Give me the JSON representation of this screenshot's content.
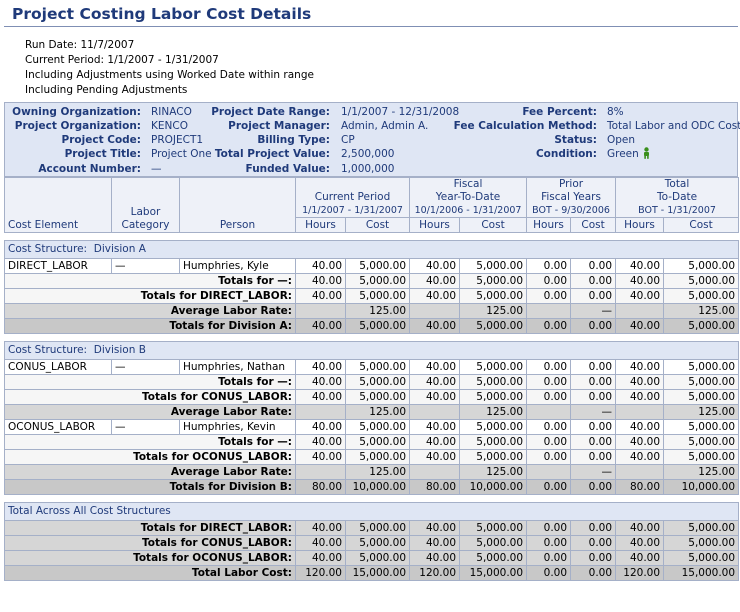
{
  "title": "Project Costing Labor Cost Details",
  "run_info": {
    "run_date": "Run Date: 11/7/2007",
    "current_period": "Current Period: 1/1/2007 - 1/31/2007",
    "note1": "Including Adjustments using Worked Date within range",
    "note2": "Including Pending Adjustments"
  },
  "project": {
    "owning_org_label": "Owning Organization:",
    "owning_org": "RINACO",
    "project_org_label": "Project Organization:",
    "project_org": "KENCO",
    "project_code_label": "Project Code:",
    "project_code": "PROJECT1",
    "project_title_label": "Project Title:",
    "project_title": "Project One",
    "account_number_label": "Account Number:",
    "account_number": "—",
    "date_range_label": "Project Date Range:",
    "date_range": "1/1/2007 - 12/31/2008",
    "manager_label": "Project Manager:",
    "manager": "Admin, Admin A.",
    "billing_type_label": "Billing Type:",
    "billing_type": "CP",
    "total_value_label": "Total Project Value:",
    "total_value": "2,500,000",
    "funded_value_label": "Funded Value:",
    "funded_value": "1,000,000",
    "fee_percent_label": "Fee Percent:",
    "fee_percent": "8%",
    "fee_method_label": "Fee Calculation Method:",
    "fee_method": "Total Labor and ODC Cost",
    "status_label": "Status:",
    "status": "Open",
    "condition_label": "Condition:",
    "condition": "Green",
    "condition_icon": "person-status-icon",
    "condition_color": "#3a8f1c"
  },
  "headers": {
    "cost_element": "Cost Element",
    "labor_category_1": "Labor",
    "labor_category_2": "Category",
    "person": "Person",
    "current_period": "Current Period",
    "current_period_range": "1/1/2007 - 1/31/2007",
    "fytd_1": "Fiscal",
    "fytd_2": "Year-To-Date",
    "fytd_range": "10/1/2006 - 1/31/2007",
    "prior_1": "Prior",
    "prior_2": "Fiscal Years",
    "prior_range": "BOT - 9/30/2006",
    "total_1": "Total",
    "total_2": "To-Date",
    "total_range": "BOT - 1/31/2007",
    "hours": "Hours",
    "cost": "Cost"
  },
  "structures": [
    {
      "label": "Cost Structure:",
      "name": "Division A",
      "elements": [
        {
          "element": "DIRECT_LABOR",
          "category": "—",
          "person": "Humphries, Kyle",
          "row": [
            "40.00",
            "5,000.00",
            "40.00",
            "5,000.00",
            "0.00",
            "0.00",
            "40.00",
            "5,000.00"
          ],
          "cat_label": "Totals for —:",
          "cat_totals": [
            "40.00",
            "5,000.00",
            "40.00",
            "5,000.00",
            "0.00",
            "0.00",
            "40.00",
            "5,000.00"
          ],
          "elem_label": "Totals for DIRECT_LABOR:",
          "elem_totals": [
            "40.00",
            "5,000.00",
            "40.00",
            "5,000.00",
            "0.00",
            "0.00",
            "40.00",
            "5,000.00"
          ]
        }
      ],
      "avg_label": "Average Labor Rate:",
      "avg": [
        "",
        "125.00",
        "",
        "125.00",
        "",
        "—",
        "",
        "125.00"
      ],
      "div_label": "Totals for Division A:",
      "div_totals": [
        "40.00",
        "5,000.00",
        "40.00",
        "5,000.00",
        "0.00",
        "0.00",
        "40.00",
        "5,000.00"
      ]
    },
    {
      "label": "Cost Structure:",
      "name": "Division B",
      "elements": [
        {
          "element": "CONUS_LABOR",
          "category": "—",
          "person": "Humphries, Nathan",
          "row": [
            "40.00",
            "5,000.00",
            "40.00",
            "5,000.00",
            "0.00",
            "0.00",
            "40.00",
            "5,000.00"
          ],
          "cat_label": "Totals for —:",
          "cat_totals": [
            "40.00",
            "5,000.00",
            "40.00",
            "5,000.00",
            "0.00",
            "0.00",
            "40.00",
            "5,000.00"
          ],
          "elem_label": "Totals for CONUS_LABOR:",
          "elem_totals": [
            "40.00",
            "5,000.00",
            "40.00",
            "5,000.00",
            "0.00",
            "0.00",
            "40.00",
            "5,000.00"
          ],
          "avg_label": "Average Labor Rate:",
          "avg": [
            "",
            "125.00",
            "",
            "125.00",
            "",
            "—",
            "",
            "125.00"
          ]
        },
        {
          "element": "OCONUS_LABOR",
          "category": "—",
          "person": "Humphries, Kevin",
          "row": [
            "40.00",
            "5,000.00",
            "40.00",
            "5,000.00",
            "0.00",
            "0.00",
            "40.00",
            "5,000.00"
          ],
          "cat_label": "Totals for —:",
          "cat_totals": [
            "40.00",
            "5,000.00",
            "40.00",
            "5,000.00",
            "0.00",
            "0.00",
            "40.00",
            "5,000.00"
          ],
          "elem_label": "Totals for OCONUS_LABOR:",
          "elem_totals": [
            "40.00",
            "5,000.00",
            "40.00",
            "5,000.00",
            "0.00",
            "0.00",
            "40.00",
            "5,000.00"
          ]
        }
      ],
      "avg_label": "Average Labor Rate:",
      "avg": [
        "",
        "125.00",
        "",
        "125.00",
        "",
        "—",
        "",
        "125.00"
      ],
      "div_label": "Totals for Division B:",
      "div_totals": [
        "80.00",
        "10,000.00",
        "80.00",
        "10,000.00",
        "0.00",
        "0.00",
        "80.00",
        "10,000.00"
      ]
    }
  ],
  "overall": {
    "label": "Total Across All Cost Structures",
    "rows": [
      {
        "label": "Totals for DIRECT_LABOR:",
        "values": [
          "40.00",
          "5,000.00",
          "40.00",
          "5,000.00",
          "0.00",
          "0.00",
          "40.00",
          "5,000.00"
        ]
      },
      {
        "label": "Totals for CONUS_LABOR:",
        "values": [
          "40.00",
          "5,000.00",
          "40.00",
          "5,000.00",
          "0.00",
          "0.00",
          "40.00",
          "5,000.00"
        ]
      },
      {
        "label": "Totals for OCONUS_LABOR:",
        "values": [
          "40.00",
          "5,000.00",
          "40.00",
          "5,000.00",
          "0.00",
          "0.00",
          "40.00",
          "5,000.00"
        ]
      },
      {
        "label": "Total Labor Cost:",
        "values": [
          "120.00",
          "15,000.00",
          "120.00",
          "15,000.00",
          "0.00",
          "0.00",
          "120.00",
          "15,000.00"
        ]
      }
    ]
  }
}
